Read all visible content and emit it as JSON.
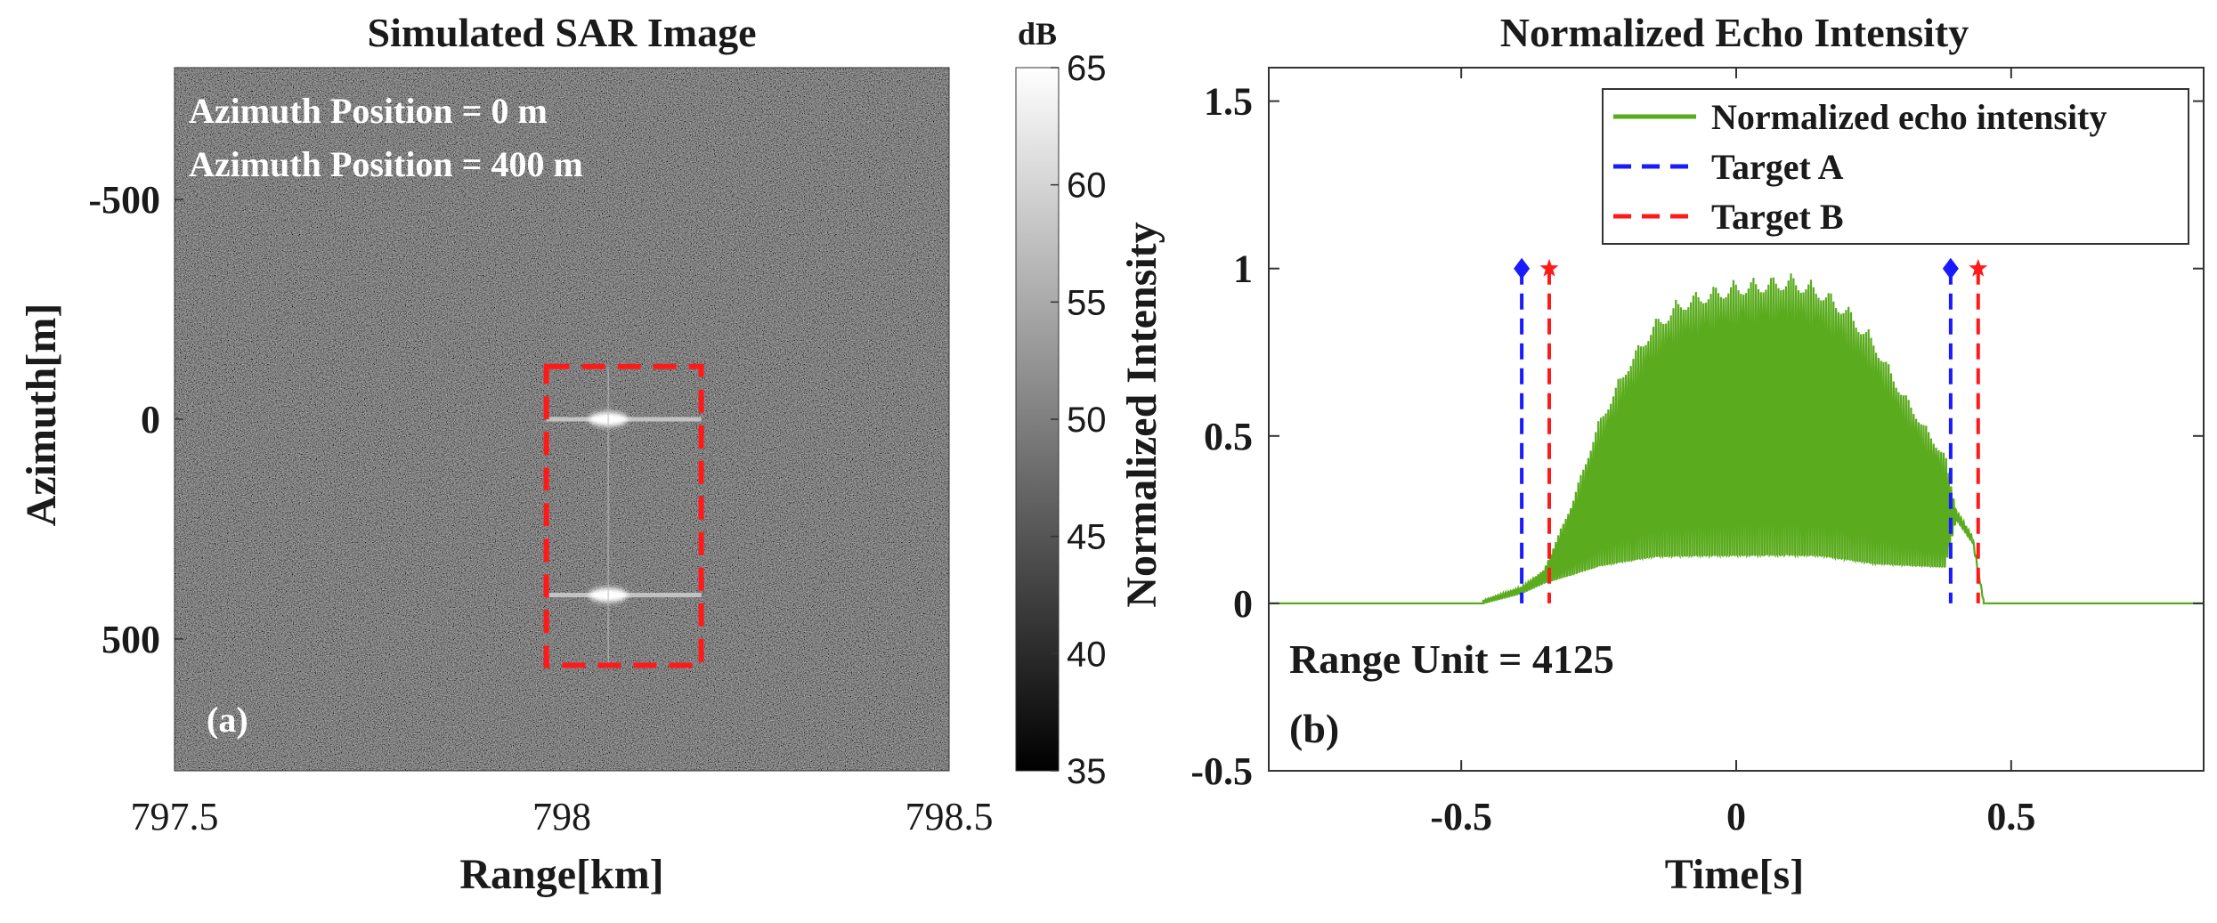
{
  "chart_data": [
    {
      "type": "heatmap",
      "panel": "(a)",
      "title": "Simulated SAR Image",
      "xlabel": "Range[km]",
      "ylabel": "Azimuth[m]",
      "xlim": [
        797.5,
        798.5
      ],
      "ylim": [
        -800,
        800
      ],
      "xticks": [
        797.5,
        798,
        798.5
      ],
      "xtick_labels": [
        "797.5",
        "798",
        "798.5"
      ],
      "yticks": [
        -500,
        0,
        500
      ],
      "ytick_labels": [
        "-500",
        "0",
        "500"
      ],
      "annotations": [
        "Azimuth Position = 0 m",
        "Azimuth Position = 400 m"
      ],
      "colorbar": {
        "label": "dB",
        "min": 35,
        "max": 65,
        "ticks": [
          35,
          40,
          45,
          50,
          55,
          60,
          65
        ],
        "tick_labels": [
          "35",
          "40",
          "45",
          "50",
          "55",
          "60",
          "65"
        ],
        "colormap": "gray"
      },
      "targets": [
        {
          "range_km": 798.06,
          "azimuth_m": 0
        },
        {
          "range_km": 798.06,
          "azimuth_m": 400
        }
      ],
      "highlight_box": {
        "x_range_km": [
          797.98,
          798.18
        ],
        "y_range_m": [
          -120,
          560
        ],
        "color": "#ff1a1a"
      }
    },
    {
      "type": "line",
      "panel": "(b)",
      "title": "Normalized Echo Intensity",
      "xlabel": "Time[s]",
      "ylabel": "Normalized Intensity",
      "xlim": [
        -0.85,
        0.85
      ],
      "ylim": [
        -0.5,
        1.6
      ],
      "xticks": [
        -0.5,
        0,
        0.5
      ],
      "xtick_labels": [
        "-0.5",
        "0",
        "0.5"
      ],
      "yticks": [
        -0.5,
        0,
        0.5,
        1,
        1.5
      ],
      "ytick_labels": [
        "-0.5",
        "0",
        "0.5",
        "1",
        "1.5"
      ],
      "annotation": "Range Unit = 4125",
      "legend_position": "top-right",
      "series": [
        {
          "name": "Normalized echo intensity",
          "color": "#5aab1e",
          "style": "solid",
          "envelope_time": [
            -0.46,
            -0.39,
            -0.35,
            -0.3,
            -0.25,
            -0.2,
            -0.15,
            -0.1,
            -0.05,
            0,
            0.05,
            0.1,
            0.15,
            0.2,
            0.25,
            0.3,
            0.35,
            0.38,
            0.4,
            0.43,
            0.45
          ],
          "envelope_upper": [
            0.01,
            0.05,
            0.1,
            0.3,
            0.55,
            0.72,
            0.85,
            0.92,
            0.95,
            0.97,
            0.98,
            0.99,
            0.96,
            0.9,
            0.8,
            0.65,
            0.52,
            0.45,
            0.28,
            0.2,
            0.01
          ],
          "envelope_lower": [
            0.0,
            0.03,
            0.06,
            0.08,
            0.1,
            0.11,
            0.12,
            0.12,
            0.12,
            0.12,
            0.12,
            0.12,
            0.12,
            0.11,
            0.1,
            0.1,
            0.1,
            0.1,
            0.25,
            0.18,
            0.0
          ]
        },
        {
          "name": "Target A",
          "color": "#1a1aff",
          "style": "dashed",
          "x": [
            -0.39,
            0.39
          ],
          "marker": "diamond"
        },
        {
          "name": "Target B",
          "color": "#ff1a1a",
          "style": "dashed",
          "x": [
            -0.34,
            0.44
          ],
          "marker": "star"
        }
      ]
    }
  ]
}
